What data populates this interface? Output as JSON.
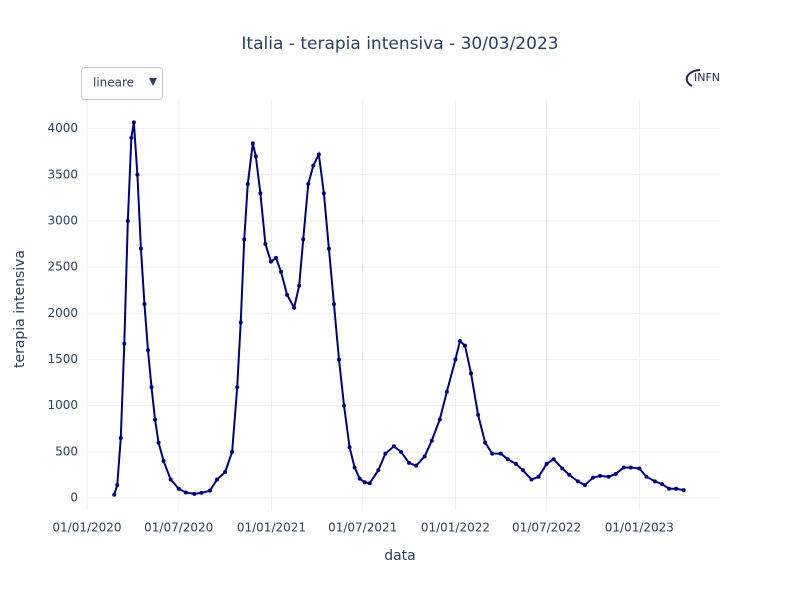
{
  "dropdown": {
    "selected": "lineare"
  },
  "logo": "INFN",
  "chart_data": {
    "type": "line",
    "title": "Italia - terapia intensiva - 30/03/2023",
    "x_label": "data",
    "y_label": "terapia intensiva",
    "x": [
      "2020-02-24",
      "2020-03-01",
      "2020-03-08",
      "2020-03-15",
      "2020-03-22",
      "2020-03-29",
      "2020-04-03",
      "2020-04-10",
      "2020-04-17",
      "2020-04-24",
      "2020-05-01",
      "2020-05-08",
      "2020-05-15",
      "2020-05-22",
      "2020-06-01",
      "2020-06-15",
      "2020-07-01",
      "2020-07-15",
      "2020-08-01",
      "2020-08-15",
      "2020-09-01",
      "2020-09-15",
      "2020-10-01",
      "2020-10-15",
      "2020-10-25",
      "2020-11-01",
      "2020-11-08",
      "2020-11-15",
      "2020-11-25",
      "2020-12-01",
      "2020-12-10",
      "2020-12-20",
      "2020-12-31",
      "2021-01-10",
      "2021-01-20",
      "2021-02-01",
      "2021-02-15",
      "2021-02-25",
      "2021-03-05",
      "2021-03-15",
      "2021-03-25",
      "2021-04-05",
      "2021-04-15",
      "2021-04-25",
      "2021-05-05",
      "2021-05-15",
      "2021-05-25",
      "2021-06-05",
      "2021-06-15",
      "2021-06-25",
      "2021-07-05",
      "2021-07-15",
      "2021-08-01",
      "2021-08-15",
      "2021-09-01",
      "2021-09-15",
      "2021-10-01",
      "2021-10-15",
      "2021-11-01",
      "2021-11-15",
      "2021-12-01",
      "2021-12-15",
      "2022-01-01",
      "2022-01-10",
      "2022-01-20",
      "2022-02-01",
      "2022-02-15",
      "2022-03-01",
      "2022-03-15",
      "2022-04-01",
      "2022-04-15",
      "2022-05-01",
      "2022-05-15",
      "2022-06-01",
      "2022-06-15",
      "2022-07-01",
      "2022-07-15",
      "2022-08-01",
      "2022-08-15",
      "2022-09-01",
      "2022-09-15",
      "2022-10-01",
      "2022-10-15",
      "2022-11-01",
      "2022-11-15",
      "2022-12-01",
      "2022-12-15",
      "2023-01-01",
      "2023-01-15",
      "2023-02-01",
      "2023-02-15",
      "2023-03-01",
      "2023-03-15",
      "2023-03-30"
    ],
    "series": [
      {
        "name": "terapia intensiva",
        "color": "#00007f",
        "values": [
          35,
          140,
          650,
          1670,
          3000,
          3900,
          4068,
          3500,
          2700,
          2100,
          1600,
          1200,
          850,
          600,
          400,
          200,
          100,
          60,
          45,
          55,
          80,
          200,
          280,
          500,
          1200,
          1900,
          2800,
          3400,
          3840,
          3700,
          3300,
          2750,
          2560,
          2600,
          2450,
          2200,
          2060,
          2300,
          2800,
          3400,
          3600,
          3720,
          3300,
          2700,
          2100,
          1500,
          1000,
          550,
          330,
          210,
          170,
          160,
          300,
          480,
          560,
          500,
          380,
          350,
          450,
          620,
          850,
          1150,
          1500,
          1700,
          1650,
          1350,
          900,
          600,
          480,
          480,
          420,
          370,
          300,
          200,
          230,
          370,
          420,
          320,
          250,
          180,
          140,
          220,
          240,
          230,
          260,
          330,
          330,
          320,
          230,
          180,
          150,
          100,
          100,
          85
        ]
      }
    ],
    "xlim": [
      "2020-01-01",
      "2023-06-10"
    ],
    "xticks": [
      {
        "value": "2020-01-01",
        "label": "01/01/2020"
      },
      {
        "value": "2020-07-01",
        "label": "01/07/2020"
      },
      {
        "value": "2021-01-01",
        "label": "01/01/2021"
      },
      {
        "value": "2021-07-01",
        "label": "01/07/2021"
      },
      {
        "value": "2022-01-01",
        "label": "01/01/2022"
      },
      {
        "value": "2022-07-01",
        "label": "01/07/2022"
      },
      {
        "value": "2023-01-01",
        "label": "01/01/2023"
      }
    ],
    "ylim": [
      -130,
      4310
    ],
    "yticks": [
      0,
      500,
      1000,
      1500,
      2000,
      2500,
      3000,
      3500,
      4000
    ],
    "grid": true
  }
}
